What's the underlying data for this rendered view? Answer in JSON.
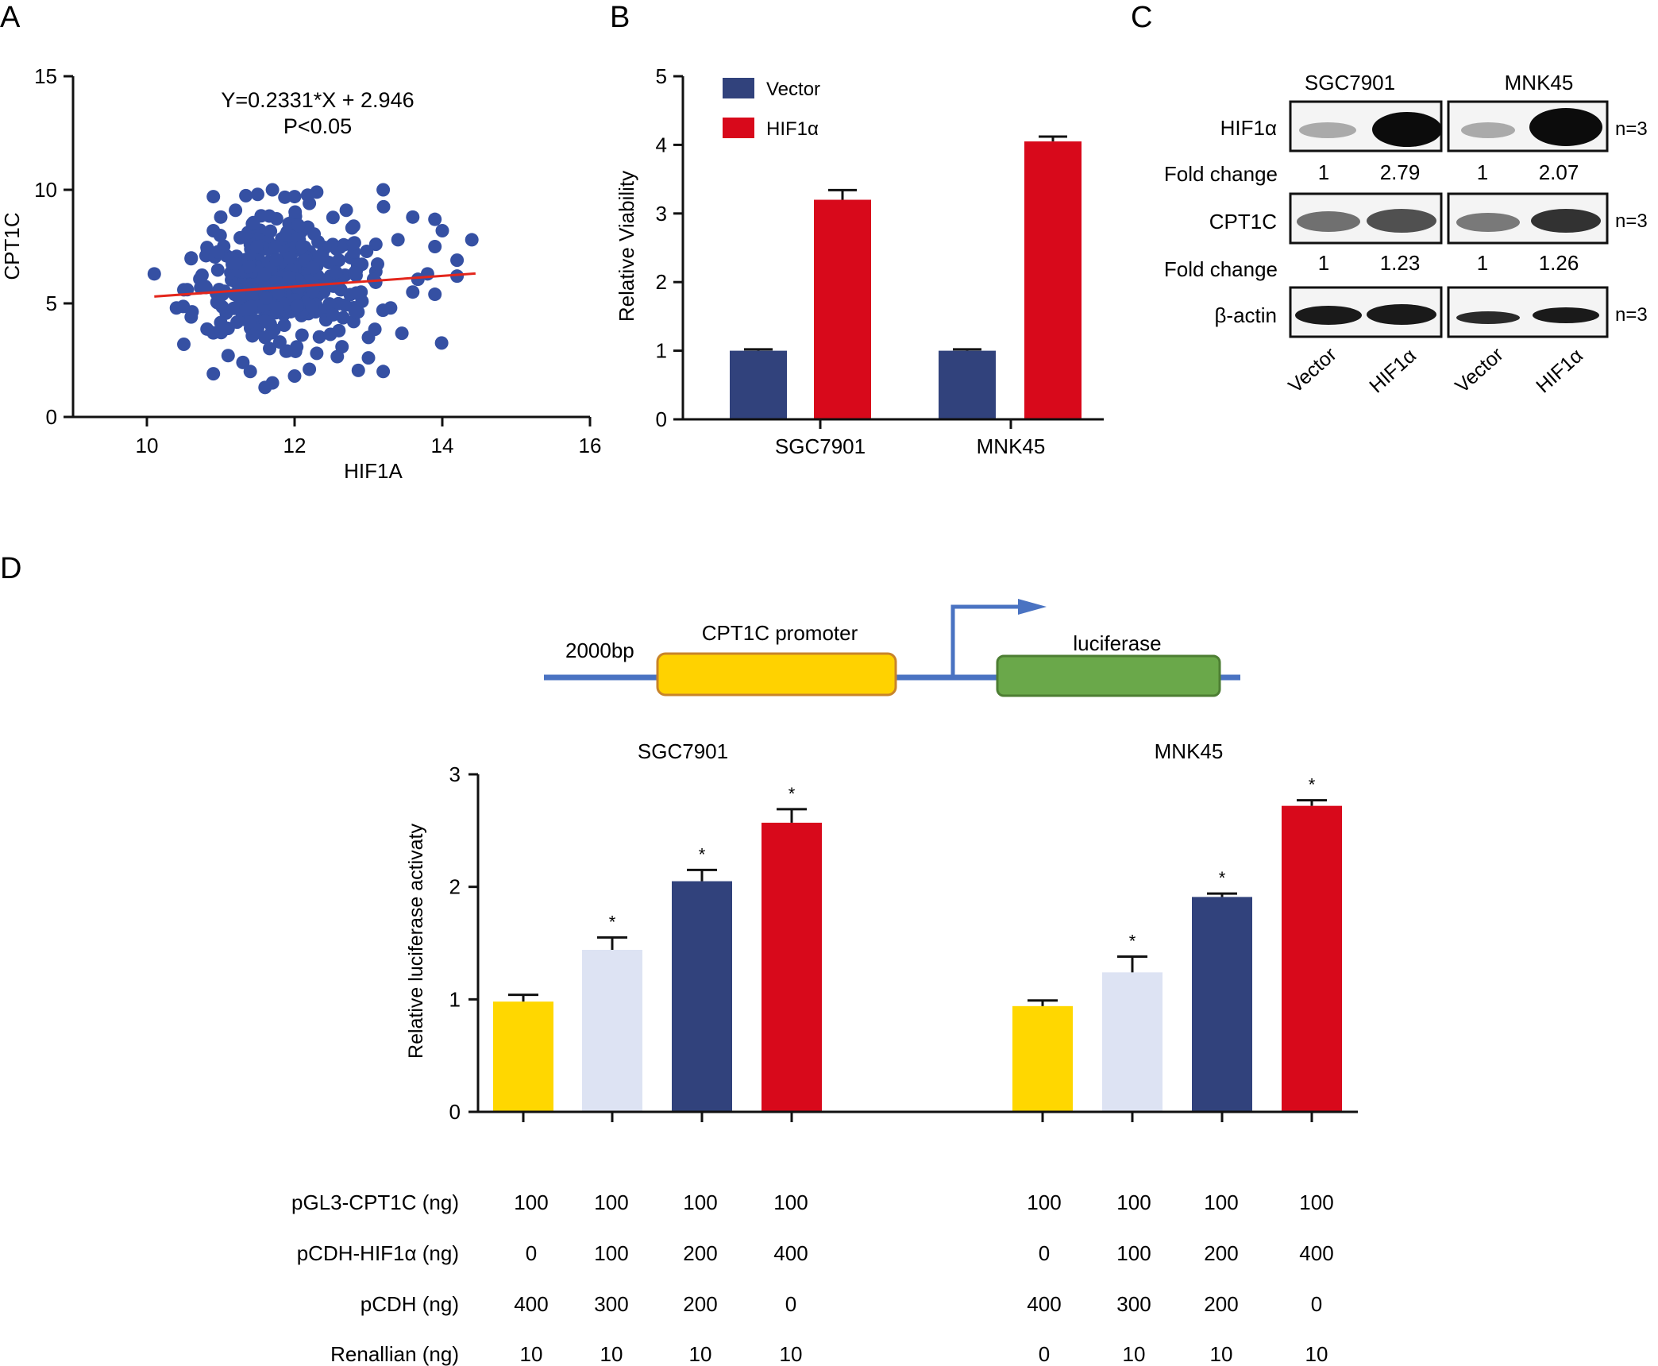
{
  "panel_labels": [
    "A",
    "B",
    "C",
    "D"
  ],
  "colors": {
    "scatter_point": "#3550a3",
    "fit_line": "#e3261c",
    "vector_bar": "#31427c",
    "hif_bar": "#d8091b",
    "lum_yellow": "#ffd700",
    "lum_lightblue": "#dde3f3",
    "lum_navy": "#31427c",
    "lum_red": "#d8091b",
    "promoter_fill": "#ffd200",
    "promoter_stroke": "#c8842a",
    "luciferase_fill": "#6aa84a",
    "luciferase_stroke": "#4d7e33",
    "dna_line": "#4a73c2"
  },
  "panelA": {
    "equation": "Y=0.2331*X + 2.946",
    "pvalue": "P<0.05",
    "xlabel": "HIF1A",
    "ylabel": "CPT1C"
  },
  "panelB": {
    "ylabel": "Relative Viability",
    "legend": [
      "Vector",
      "HIF1α"
    ],
    "categories": [
      "SGC7901",
      "MNK45"
    ]
  },
  "panelC": {
    "cell_lines": [
      "SGC7901",
      "MNK45"
    ],
    "rows": [
      {
        "label": "HIF1α",
        "n": "n=3"
      },
      {
        "label": "CPT1C",
        "n": "n=3"
      },
      {
        "label": "β-actin",
        "n": "n=3"
      }
    ],
    "fold_change_label": "Fold change",
    "fold_changes": [
      [
        "1",
        "2.79",
        "1",
        "2.07"
      ],
      [
        "1",
        "1.23",
        "1",
        "1.26"
      ]
    ],
    "lane_labels": [
      "Vector",
      "HIF1α",
      "Vector",
      "HIF1α"
    ]
  },
  "panelD": {
    "schematic": {
      "bp_label": "2000bp",
      "promoter_label": "CPT1C promoter",
      "luciferase_label": "luciferase"
    },
    "ylabel": "Relative luciferase activaty",
    "group_titles": [
      "SGC7901",
      "MNK45"
    ],
    "significance_mark": "*",
    "table": {
      "row_labels": [
        "pGL3-CPT1C (ng)",
        "pCDH-HIF1α (ng)",
        "pCDH (ng)",
        "Renallian (ng)"
      ],
      "values": [
        [
          "100",
          "100",
          "100",
          "100",
          "100",
          "100",
          "100",
          "100"
        ],
        [
          "0",
          "100",
          "200",
          "400",
          "0",
          "100",
          "200",
          "400"
        ],
        [
          "400",
          "300",
          "200",
          "0",
          "400",
          "300",
          "200",
          "0"
        ],
        [
          "10",
          "10",
          "10",
          "10",
          "0",
          "10",
          "10",
          "10"
        ]
      ]
    }
  },
  "chart_data": [
    {
      "panel": "A",
      "type": "scatter",
      "xlabel": "HIF1A",
      "ylabel": "CPT1C",
      "xlim": [
        9,
        16
      ],
      "ylim": [
        0,
        15
      ],
      "xticks": [
        10,
        12,
        14,
        16
      ],
      "yticks": [
        0,
        5,
        10,
        15
      ],
      "fit": {
        "slope": 0.2331,
        "intercept": 2.946,
        "x_range": [
          10.1,
          14.2
        ]
      },
      "annotations": [
        "Y=0.2331*X + 2.946",
        "P<0.05"
      ],
      "points": [
        [
          10.1,
          6.3
        ],
        [
          10.9,
          9.7
        ],
        [
          10.9,
          8.2
        ],
        [
          11.2,
          9.1
        ],
        [
          11.5,
          9.8
        ],
        [
          11.7,
          10.0
        ],
        [
          12.0,
          9.7
        ],
        [
          12.2,
          9.4
        ],
        [
          12.3,
          9.9
        ],
        [
          12.7,
          9.1
        ],
        [
          13.2,
          10.0
        ],
        [
          13.6,
          8.8
        ],
        [
          13.9,
          8.7
        ],
        [
          14.0,
          8.2
        ],
        [
          14.4,
          7.8
        ],
        [
          14.2,
          6.9
        ],
        [
          13.9,
          7.5
        ],
        [
          13.4,
          7.8
        ],
        [
          13.1,
          7.6
        ],
        [
          12.8,
          8.4
        ],
        [
          11.0,
          8.8
        ],
        [
          10.8,
          7.1
        ],
        [
          10.6,
          7.0
        ],
        [
          10.5,
          5.6
        ],
        [
          10.4,
          4.8
        ],
        [
          10.6,
          4.4
        ],
        [
          10.9,
          3.7
        ],
        [
          10.5,
          3.2
        ],
        [
          10.9,
          1.9
        ],
        [
          11.1,
          3.9
        ],
        [
          11.3,
          2.4
        ],
        [
          11.4,
          2.0
        ],
        [
          11.6,
          1.3
        ],
        [
          11.7,
          1.5
        ],
        [
          11.9,
          2.9
        ],
        [
          12.0,
          1.8
        ],
        [
          12.2,
          2.1
        ],
        [
          12.3,
          2.8
        ],
        [
          11.8,
          3.3
        ],
        [
          12.1,
          3.6
        ],
        [
          12.6,
          3.8
        ],
        [
          13.0,
          3.5
        ],
        [
          13.2,
          2.0
        ],
        [
          13.0,
          2.6
        ],
        [
          12.8,
          4.2
        ],
        [
          13.3,
          4.8
        ],
        [
          13.6,
          5.5
        ],
        [
          13.9,
          5.4
        ],
        [
          14.2,
          6.2
        ],
        [
          13.8,
          6.3
        ],
        [
          11.3,
          4.4
        ],
        [
          11.5,
          3.9
        ],
        [
          11.6,
          3.5
        ],
        [
          11.1,
          2.7
        ],
        [
          11.9,
          7.9
        ],
        [
          12.4,
          7.4
        ],
        [
          12.6,
          6.9
        ],
        [
          11.4,
          7.6
        ],
        [
          11.2,
          6.6
        ],
        [
          10.8,
          5.7
        ],
        [
          11.6,
          5.1
        ],
        [
          11.9,
          5.9
        ],
        [
          12.2,
          5.3
        ],
        [
          12.4,
          4.7
        ],
        [
          12.9,
          5.5
        ],
        [
          13.1,
          6.4
        ],
        [
          12.5,
          6.0
        ],
        [
          11.8,
          6.3
        ],
        [
          12.1,
          6.8
        ],
        [
          11.5,
          6.0
        ]
      ]
    },
    {
      "panel": "B",
      "type": "bar",
      "categories": [
        "SGC7901",
        "MNK45"
      ],
      "series": [
        {
          "name": "Vector",
          "values": [
            1.0,
            1.0
          ],
          "errors": [
            0.02,
            0.02
          ]
        },
        {
          "name": "HIF1α",
          "values": [
            3.2,
            4.05
          ],
          "errors": [
            0.14,
            0.07
          ]
        }
      ],
      "ylabel": "Relative Viability",
      "ylim": [
        0,
        5
      ],
      "yticks": [
        0,
        1,
        2,
        3,
        4,
        5
      ],
      "legend_position": "top-left"
    },
    {
      "panel": "D",
      "type": "bar",
      "groups": [
        "SGC7901",
        "MNK45"
      ],
      "values": [
        [
          0.98,
          1.44,
          2.05,
          2.57
        ],
        [
          0.94,
          1.24,
          1.91,
          2.72
        ]
      ],
      "errors": [
        [
          0.06,
          0.11,
          0.1,
          0.12
        ],
        [
          0.05,
          0.14,
          0.03,
          0.05
        ]
      ],
      "significant": [
        [
          false,
          true,
          true,
          true
        ],
        [
          false,
          true,
          true,
          true
        ]
      ],
      "ylabel": "Relative luciferase activaty",
      "ylim": [
        0,
        3
      ],
      "yticks": [
        0,
        1,
        2,
        3
      ]
    }
  ]
}
